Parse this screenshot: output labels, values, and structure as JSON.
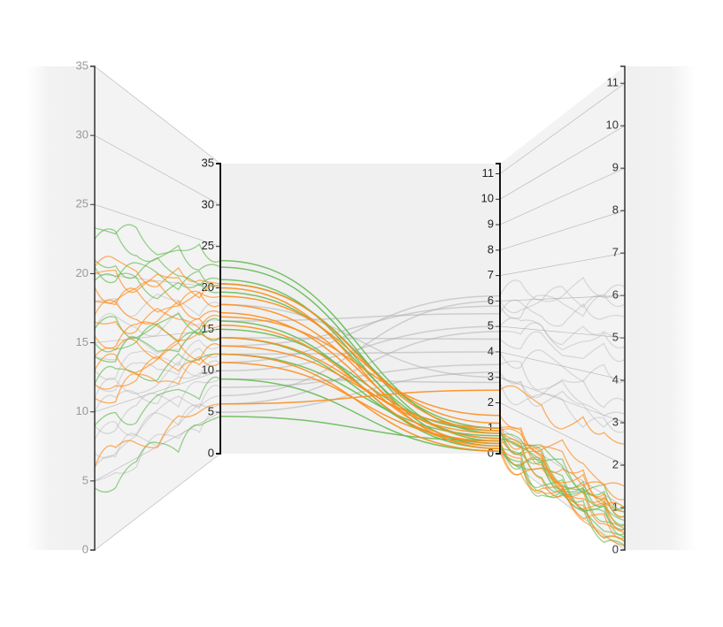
{
  "chart_data": {
    "type": "parallel",
    "dimensions": [
      {
        "ylim": [
          0,
          35
        ],
        "yticks": [
          0,
          5,
          10,
          15,
          20,
          25,
          30,
          35
        ]
      },
      {
        "ylim": [
          0,
          11.4
        ],
        "yticks": [
          0,
          1,
          2,
          3,
          4,
          5,
          6,
          7,
          8,
          9,
          10,
          11
        ]
      }
    ],
    "series": [
      {
        "color": "#aaaaaa",
        "values": [
          [
            12,
            4
          ],
          [
            10,
            5
          ],
          [
            8,
            3.5
          ],
          [
            7,
            6
          ],
          [
            14,
            4.5
          ],
          [
            16,
            5.5
          ],
          [
            18,
            3
          ],
          [
            9,
            2.8
          ],
          [
            6,
            4.8
          ],
          [
            11,
            6.2
          ],
          [
            5,
            3.2
          ],
          [
            13,
            5.8
          ]
        ]
      },
      {
        "color": "#66bb55",
        "values": [
          [
            23.3,
            0.8
          ],
          [
            22.5,
            0.5
          ],
          [
            21,
            0.3
          ],
          [
            20.5,
            1
          ],
          [
            19.5,
            0.6
          ],
          [
            16,
            0.2
          ],
          [
            15,
            0.9
          ],
          [
            14,
            0.4
          ],
          [
            12,
            0.7
          ],
          [
            9,
            0.1
          ],
          [
            4.5,
            0.5
          ]
        ]
      },
      {
        "color": "#ff8c1a",
        "values": [
          [
            20.5,
            0.9
          ],
          [
            20,
            0.2
          ],
          [
            19,
            1.2
          ],
          [
            18,
            0.6
          ],
          [
            17,
            0.4
          ],
          [
            16.5,
            1.5
          ],
          [
            15.5,
            0.3
          ],
          [
            14,
            0.8
          ],
          [
            13,
            1
          ],
          [
            12,
            0.1
          ],
          [
            11,
            0.5
          ],
          [
            6,
            2.5
          ]
        ]
      }
    ]
  }
}
